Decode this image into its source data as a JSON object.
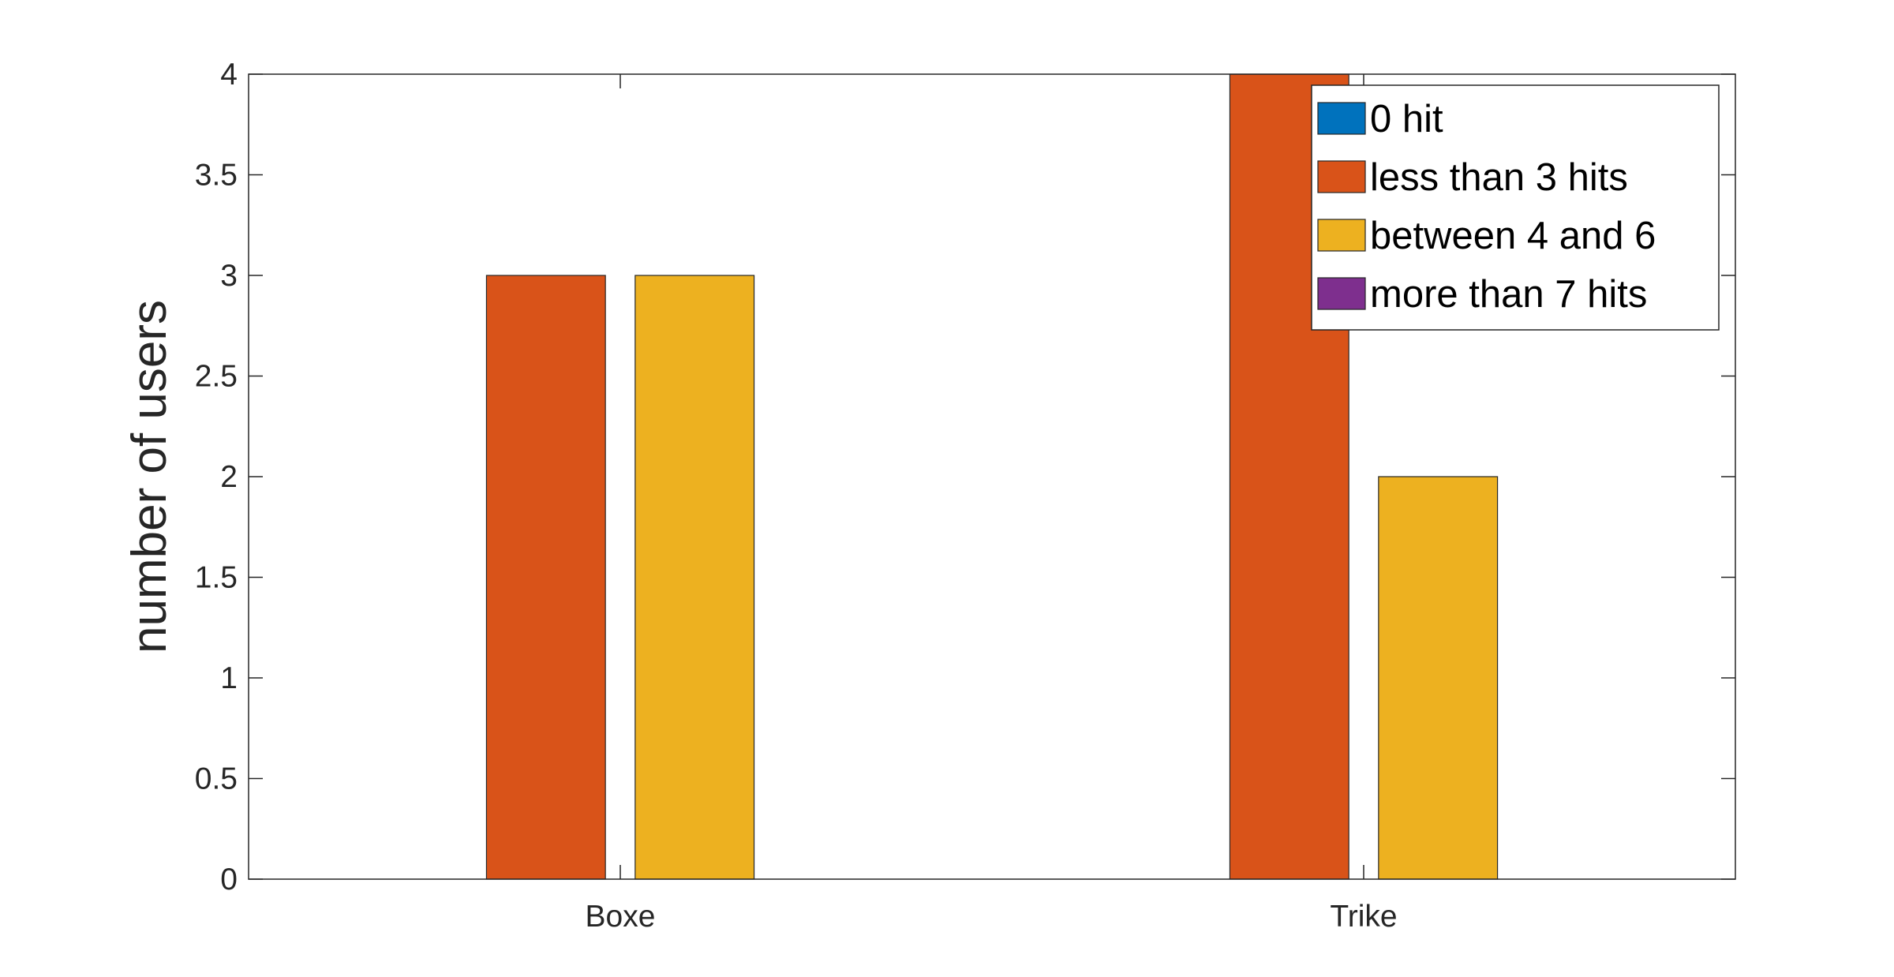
{
  "chart_data": {
    "type": "bar",
    "categories": [
      "Boxe",
      "Trike"
    ],
    "series": [
      {
        "name": "0 hit",
        "values": [
          0,
          0
        ],
        "color": "#0072BD"
      },
      {
        "name": "less than 3 hits",
        "values": [
          3,
          4
        ],
        "color": "#D95319"
      },
      {
        "name": "between 4 and 6",
        "values": [
          3,
          2
        ],
        "color": "#EDB120"
      },
      {
        "name": "more than 7 hits",
        "values": [
          0,
          0
        ],
        "color": "#7E2F8E"
      }
    ],
    "ylabel": "number of users",
    "xlabel": "",
    "ylim": [
      0,
      4
    ],
    "yticks": [
      "0",
      "0.5",
      "1",
      "1.5",
      "2",
      "2.5",
      "3",
      "3.5",
      "4"
    ],
    "grid": false,
    "legend_position": "top-right"
  }
}
